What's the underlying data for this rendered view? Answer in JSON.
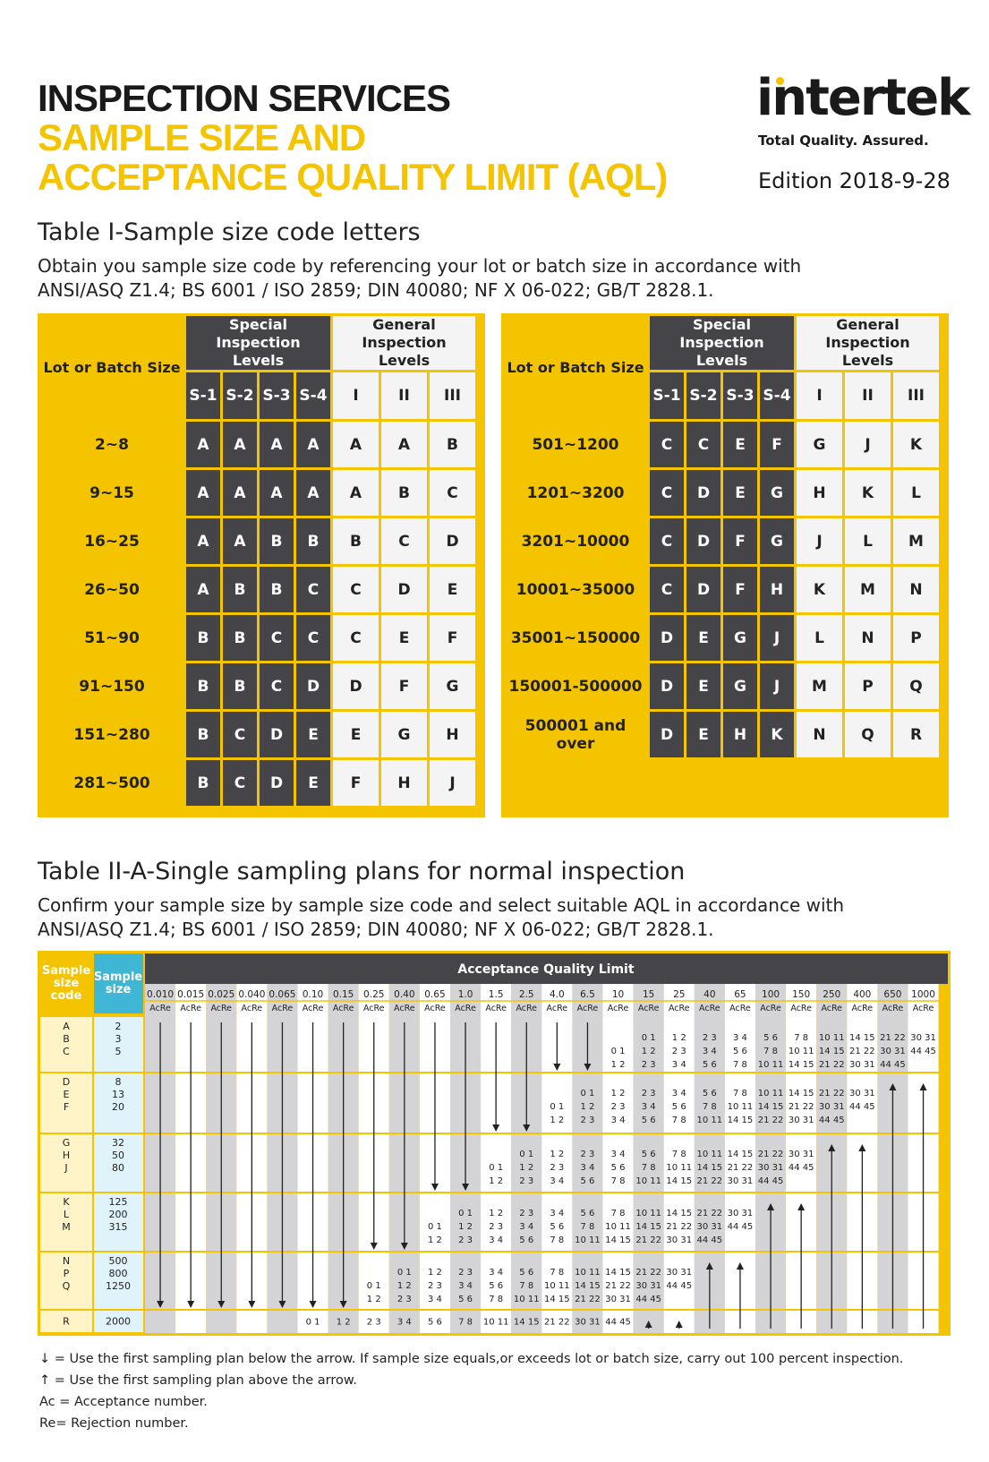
{
  "header": {
    "line1": "INSPECTION SERVICES",
    "line2": "SAMPLE SIZE AND",
    "line3": "ACCEPTANCE QUALITY LIMIT (AQL)",
    "logo": "intertek",
    "tagline": "Total Quality. Assured.",
    "edition": "Edition 2018-9-28",
    "accent": "#f5c400",
    "dark": "#454549"
  },
  "table1": {
    "title": "Table I-Sample size code letters",
    "desc1": "Obtain you sample size code by referencing your lot or batch size in accordance with",
    "desc2": "ANSI/ASQ Z1.4; BS 6001 / ISO 2859; DIN 40080; NF X 06-022; GB/T 2828.1.",
    "lot_header": "Lot or Batch Size",
    "special_header": "Special Inspection Levels",
    "general_header": "General Inspection Levels",
    "special_levels": [
      "S-1",
      "S-2",
      "S-3",
      "S-4"
    ],
    "general_levels": [
      "I",
      "II",
      "III"
    ],
    "left_rows": [
      [
        "2~8",
        "A",
        "A",
        "A",
        "A",
        "A",
        "A",
        "B"
      ],
      [
        "9~15",
        "A",
        "A",
        "A",
        "A",
        "A",
        "B",
        "C"
      ],
      [
        "16~25",
        "A",
        "A",
        "B",
        "B",
        "B",
        "C",
        "D"
      ],
      [
        "26~50",
        "A",
        "B",
        "B",
        "C",
        "C",
        "D",
        "E"
      ],
      [
        "51~90",
        "B",
        "B",
        "C",
        "C",
        "C",
        "E",
        "F"
      ],
      [
        "91~150",
        "B",
        "B",
        "C",
        "D",
        "D",
        "F",
        "G"
      ],
      [
        "151~280",
        "B",
        "C",
        "D",
        "E",
        "E",
        "G",
        "H"
      ],
      [
        "281~500",
        "B",
        "C",
        "D",
        "E",
        "F",
        "H",
        "J"
      ]
    ],
    "right_rows": [
      [
        "501~1200",
        "C",
        "C",
        "E",
        "F",
        "G",
        "J",
        "K"
      ],
      [
        "1201~3200",
        "C",
        "D",
        "E",
        "G",
        "H",
        "K",
        "L"
      ],
      [
        "3201~10000",
        "C",
        "D",
        "F",
        "G",
        "J",
        "L",
        "M"
      ],
      [
        "10001~35000",
        "C",
        "D",
        "F",
        "H",
        "K",
        "M",
        "N"
      ],
      [
        "35001~150000",
        "D",
        "E",
        "G",
        "J",
        "L",
        "N",
        "P"
      ],
      [
        "150001-500000",
        "D",
        "E",
        "G",
        "J",
        "M",
        "P",
        "Q"
      ],
      [
        "500001 and over",
        "D",
        "E",
        "H",
        "K",
        "N",
        "Q",
        "R"
      ]
    ]
  },
  "table2": {
    "title": "Table II-A-Single sampling plans for normal inspection",
    "desc1": "Confirm your sample size by sample size code and select suitable AQL in accordance with",
    "desc2": "ANSI/ASQ Z1.4; BS 6001 / ISO 2859; DIN 40080; NF X 06-022; GB/T 2828.1.",
    "code_header": "Sample size code",
    "size_header": "Sample size",
    "aql_header": "Acceptance Quality Limit",
    "acre": "AcRe",
    "aql_values": [
      "0.010",
      "0.015",
      "0.025",
      "0.040",
      "0.065",
      "0.10",
      "0.15",
      "0.25",
      "0.40",
      "0.65",
      "1.0",
      "1.5",
      "2.5",
      "4.0",
      "6.5",
      "10",
      "15",
      "25",
      "40",
      "65",
      "100",
      "150",
      "250",
      "400",
      "650",
      "1000"
    ],
    "plans": [
      "0 1",
      "1 2",
      "2 3",
      "3 4",
      "5 6",
      "7 8",
      "10 11",
      "14 15",
      "21 22",
      "30 31",
      "44 45"
    ],
    "groups": [
      {
        "codes": [
          "A",
          "B",
          "C"
        ],
        "sizes": [
          "2",
          "3",
          "5"
        ]
      },
      {
        "codes": [
          "D",
          "E",
          "F"
        ],
        "sizes": [
          "8",
          "13",
          "20"
        ]
      },
      {
        "codes": [
          "G",
          "H",
          "J"
        ],
        "sizes": [
          "32",
          "50",
          "80"
        ]
      },
      {
        "codes": [
          "K",
          "L",
          "M"
        ],
        "sizes": [
          "125",
          "200",
          "315"
        ]
      },
      {
        "codes": [
          "N",
          "P",
          "Q"
        ],
        "sizes": [
          "500",
          "800",
          "1250"
        ]
      },
      {
        "codes": [
          "R"
        ],
        "sizes": [
          "2000"
        ]
      }
    ]
  },
  "legend": {
    "down": "= Use the first sampling plan below the arrow. If sample size equals,or exceeds lot or batch size, carry out 100 percent inspection.",
    "up": "= Use the first sampling plan above the arrow.",
    "ac": "Ac = Acceptance number.",
    "re": "Re= Rejection number."
  }
}
